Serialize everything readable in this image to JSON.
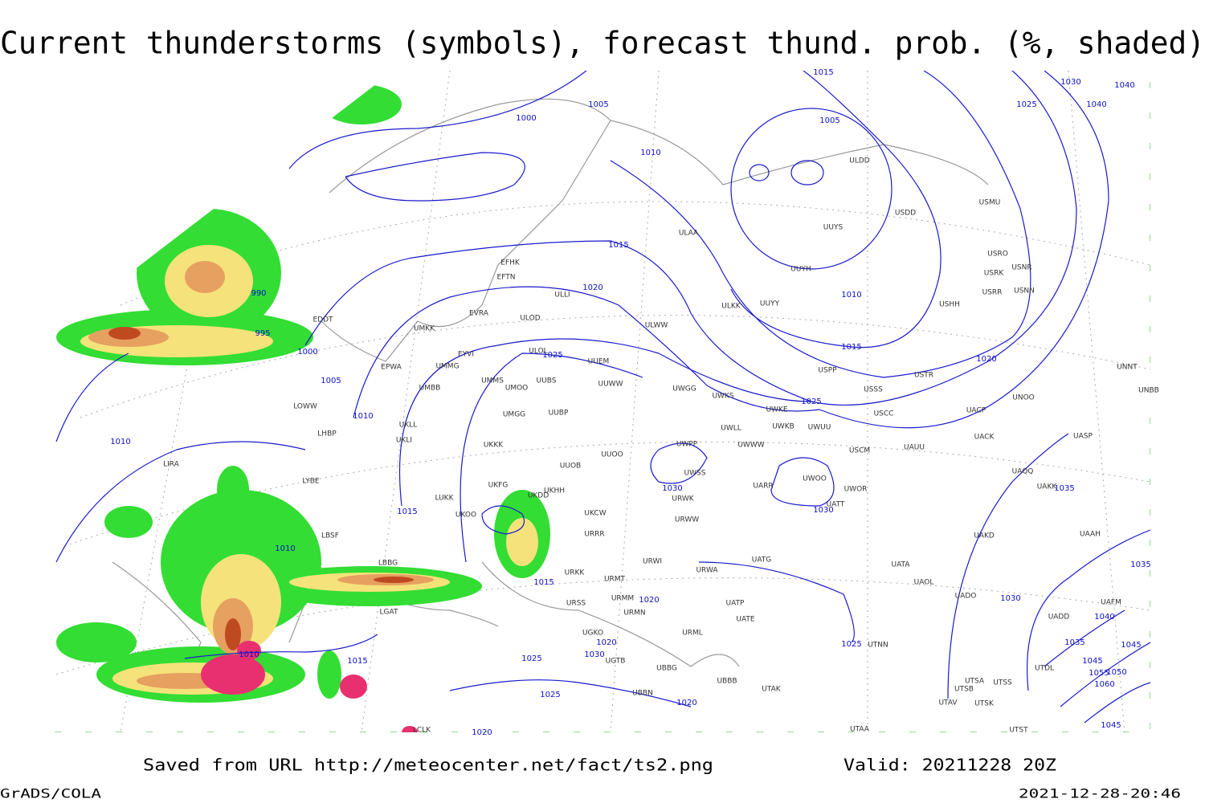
{
  "header": {
    "title": "Current thunderstorms (symbols), forecast thund. prob. (%, shaded)"
  },
  "map": {
    "isobar_labels": [
      1000,
      1005,
      1010,
      1005,
      1010,
      1015,
      1015,
      1020,
      1025,
      1020,
      1025,
      1030,
      1040,
      1040,
      990,
      995,
      1000,
      1005,
      1010,
      1010,
      1015,
      1010,
      1010,
      1015,
      1015,
      1020,
      1020,
      1030,
      1025,
      1025,
      1020,
      1020,
      1025,
      1025,
      1030,
      1030,
      1030,
      1035,
      1035,
      1040,
      1045,
      1035,
      1045,
      1050,
      1055,
      1060,
      1045,
      1015
    ],
    "stations": [
      "ULDD",
      "USDD",
      "USMU",
      "UUYS",
      "ULAA",
      "USRO",
      "USRK",
      "USNR",
      "UUYH",
      "USRR",
      "USNN",
      "ULKK",
      "UUYY",
      "USHH",
      "EFHK",
      "EFTN",
      "ULLI",
      "EVRA",
      "ULOD",
      "UMKK",
      "ULWW",
      "EDDT",
      "EYVI",
      "ULOL",
      "UUEM",
      "EPWA",
      "UMMG",
      "UMMS",
      "UMOO",
      "UUBS",
      "UUWW",
      "UWGG",
      "UWKS",
      "USSS",
      "UNNT",
      "UNBB",
      "UMBB",
      "USPP",
      "UNOO",
      "USTR",
      "LOWW",
      "UMGG",
      "UUBP",
      "UWKE",
      "USCC",
      "UACP",
      "UKLL",
      "UWKB",
      "UWUU",
      "UWLL",
      "UACK",
      "UASP",
      "LHBP",
      "UKLI",
      "UKKK",
      "UWWW",
      "UWPP",
      "USCM",
      "UAUU",
      "UUOO",
      "LIRA",
      "UUOB",
      "UWSS",
      "UAQQ",
      "LYBE",
      "UKHH",
      "UKFG",
      "UARR",
      "UWOO",
      "UWOR",
      "UAKK",
      "LUKK",
      "UKOO",
      "UKDD",
      "URWK",
      "UATT",
      "UKCW",
      "URWW",
      "LBSF",
      "URRR",
      "UAKD",
      "UAAH",
      "LBBG",
      "UATG",
      "URWI",
      "UATA",
      "URKK",
      "URWA",
      "URMT",
      "UAOL",
      "UADO",
      "URMM",
      "UAFM",
      "URSS",
      "UATP",
      "URMN",
      "UADD",
      "LGAT",
      "UATE",
      "UGKO",
      "URML",
      "UTNN",
      "UTDL",
      "UGTB",
      "UBBG",
      "UBBB",
      "UTSA",
      "UTSS",
      "UTSB",
      "UTAK",
      "UBBN",
      "UTAV",
      "UTSK",
      "UTST",
      "UTAA",
      "LCLK"
    ]
  },
  "footer": {
    "source": "Saved from URL http://meteocenter.net/fact/ts2.png",
    "valid": "Valid: 20211228 20Z",
    "software": "GrADS/COLA",
    "timestamp": "2021-12-28-20:46"
  }
}
